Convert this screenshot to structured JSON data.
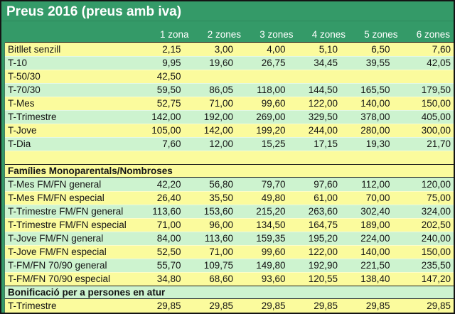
{
  "window": {
    "title": "Preus 2016 (preus amb iva)"
  },
  "theme": {
    "header_green": "#349a68",
    "row_yellow": "#fbfb9d",
    "row_light_green": "#cdf3cf",
    "outer_border": "#141414",
    "header_text": "#ffffff",
    "body_text": "#141414"
  },
  "table": {
    "column_headers": [
      "1 zona",
      "2 zones",
      "3 zones",
      "4 zones",
      "5 zones",
      "6 zones"
    ],
    "rows": [
      {
        "kind": "data",
        "bg": "yellow",
        "label": "Bitllet senzill",
        "values": [
          "2,15",
          "3,00",
          "4,00",
          "5,10",
          "6,50",
          "7,60"
        ]
      },
      {
        "kind": "data",
        "bg": "green",
        "label": "T-10",
        "values": [
          "9,95",
          "19,60",
          "26,75",
          "34,45",
          "39,55",
          "42,05"
        ]
      },
      {
        "kind": "data",
        "bg": "yellow",
        "label": "T-50/30",
        "values": [
          "42,50",
          "",
          "",
          "",
          "",
          ""
        ]
      },
      {
        "kind": "data",
        "bg": "green",
        "label": "T-70/30",
        "values": [
          "59,50",
          "86,05",
          "118,00",
          "144,50",
          "165,50",
          "179,50"
        ]
      },
      {
        "kind": "data",
        "bg": "yellow",
        "label": "T-Mes",
        "values": [
          "52,75",
          "71,00",
          "99,60",
          "122,00",
          "140,00",
          "150,00"
        ]
      },
      {
        "kind": "data",
        "bg": "green",
        "label": "T-Trimestre",
        "values": [
          "142,00",
          "192,00",
          "269,00",
          "329,50",
          "378,00",
          "405,00"
        ]
      },
      {
        "kind": "data",
        "bg": "yellow",
        "label": "T-Jove",
        "values": [
          "105,00",
          "142,00",
          "199,20",
          "244,00",
          "280,00",
          "300,00"
        ]
      },
      {
        "kind": "data",
        "bg": "green",
        "label": "T-Dia",
        "values": [
          "7,60",
          "12,00",
          "15,25",
          "17,15",
          "19,30",
          "21,70"
        ]
      },
      {
        "kind": "spacer",
        "bg": "yellow",
        "label": "",
        "values": [
          "",
          "",
          "",
          "",
          "",
          ""
        ]
      },
      {
        "kind": "section",
        "bg": "yellow",
        "label": "Famílies Monoparentals/Nombroses",
        "values": []
      },
      {
        "kind": "data",
        "bg": "green",
        "label": "T-Mes FM/FN general",
        "values": [
          "42,20",
          "56,80",
          "79,70",
          "97,60",
          "112,00",
          "120,00"
        ]
      },
      {
        "kind": "data",
        "bg": "yellow",
        "label": "T-Mes FM/FN especial",
        "values": [
          "26,40",
          "35,50",
          "49,80",
          "61,00",
          "70,00",
          "75,00"
        ]
      },
      {
        "kind": "data",
        "bg": "green",
        "label": "T-Trimestre FM/FN general",
        "values": [
          "113,60",
          "153,60",
          "215,20",
          "263,60",
          "302,40",
          "324,00"
        ]
      },
      {
        "kind": "data",
        "bg": "yellow",
        "label": "T-Trimestre FM/FN especial",
        "values": [
          "71,00",
          "96,00",
          "134,50",
          "164,75",
          "189,00",
          "202,50"
        ]
      },
      {
        "kind": "data",
        "bg": "green",
        "label": "T-Jove FM/FN general",
        "values": [
          "84,00",
          "113,60",
          "159,35",
          "195,20",
          "224,00",
          "240,00"
        ]
      },
      {
        "kind": "data",
        "bg": "yellow",
        "label": "T-Jove FM/FN especial",
        "values": [
          "52,50",
          "71,00",
          "99,60",
          "122,00",
          "140,00",
          "150,00"
        ]
      },
      {
        "kind": "data",
        "bg": "green",
        "label": "T-FM/FN 70/90 general",
        "values": [
          "55,70",
          "109,75",
          "149,80",
          "192,90",
          "221,50",
          "235,50"
        ]
      },
      {
        "kind": "data",
        "bg": "yellow",
        "label": "T-FM/FN 70/90 especial",
        "values": [
          "34,80",
          "68,60",
          "93,60",
          "120,55",
          "138,40",
          "147,20"
        ]
      },
      {
        "kind": "section",
        "bg": "green",
        "label": "Bonificació per a persones en atur",
        "values": []
      },
      {
        "kind": "data",
        "bg": "yellow",
        "label": "T-Trimestre",
        "values": [
          "29,85",
          "29,85",
          "29,85",
          "29,85",
          "29,85",
          "29,85"
        ]
      }
    ]
  }
}
